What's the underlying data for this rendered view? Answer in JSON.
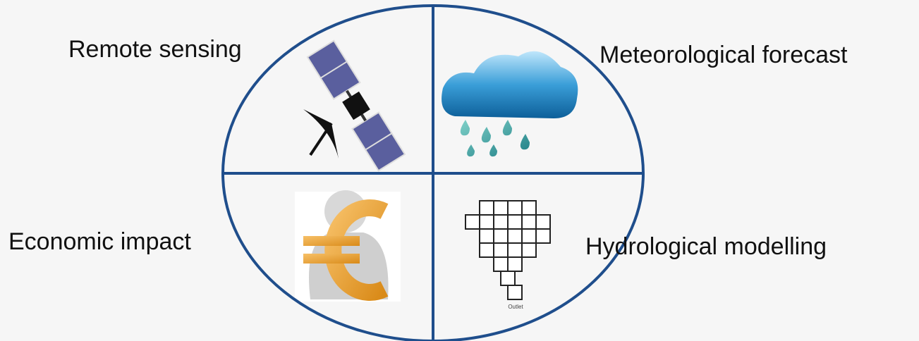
{
  "quadrants": [
    {
      "label": "Remote sensing"
    },
    {
      "label": "Meteorological forecast"
    },
    {
      "label": "Economic impact"
    },
    {
      "label": "Hydrological modelling"
    }
  ],
  "outlet_label": "Outlet"
}
